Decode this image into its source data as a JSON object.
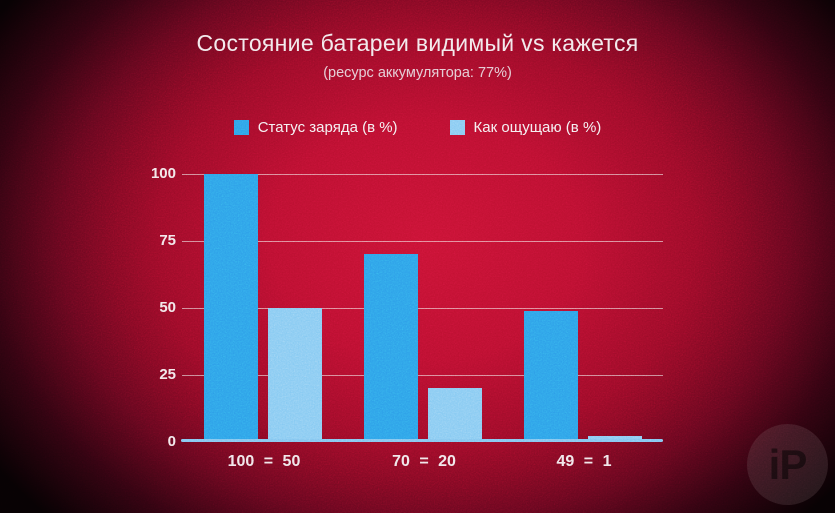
{
  "chart_data": {
    "type": "bar",
    "title": "Состояние батареи видимый vs кажется",
    "subtitle": "(ресурс аккумулятора: 77%)",
    "categories": [
      "100 = 50",
      "70 = 20",
      "49 = 1"
    ],
    "series": [
      {
        "name": "Статус заряда (в %)",
        "color": "#2D9EE8",
        "values": [
          100,
          70,
          49
        ]
      },
      {
        "name": "Как ощущаю (в %)",
        "color": "#85C9F2",
        "values": [
          50,
          20,
          1
        ]
      }
    ],
    "xlabel": "",
    "ylabel": "",
    "ylim": [
      0,
      100
    ],
    "yticks": [
      0,
      25,
      50,
      75,
      100
    ],
    "grid": true,
    "legend_position": "top"
  },
  "colors": {
    "background_center": "#C71233",
    "background_edge": "#070103",
    "axis_line": "#7EC3EF",
    "gridline": "rgba(255,255,255,0.5)",
    "title_text": "#F2E7EA",
    "subtitle_text": "#E3C6CF"
  },
  "watermark": {
    "text": "iP"
  }
}
